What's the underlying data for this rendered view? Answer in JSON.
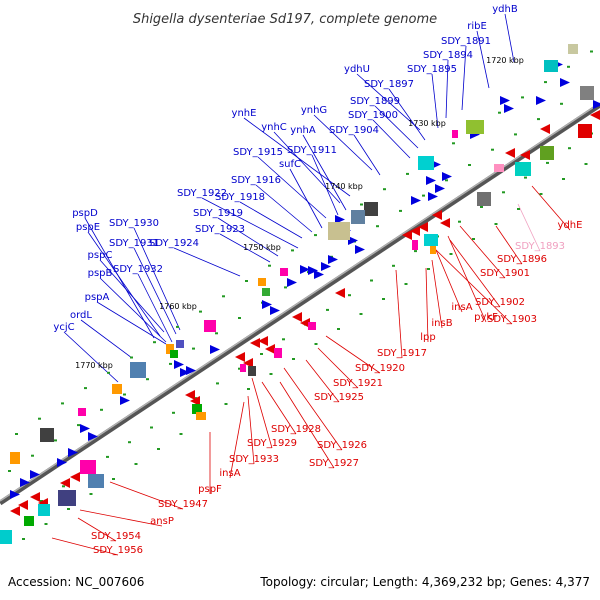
{
  "title": "Shigella dysenteriae Sd197, complete genome",
  "footer": {
    "accession": "Accession: NC_007606",
    "summary": "Topology: circular; Length: 4,369,232 bp; Genes: 4,377"
  },
  "colors": {
    "forward_label": "#0000cc",
    "reverse_label": "#dd0000",
    "pseudo_label": "#f0a0c0",
    "backbone": "#808080"
  },
  "kbp_marks": [
    "1720 kbp",
    "1730 kbp",
    "1740 kbp",
    "1750 kbp",
    "1760 kbp",
    "1770 kbp"
  ],
  "forward_genes": [
    "ydhB",
    "ribE",
    "SDY_1891",
    "SDY_1894",
    "SDY_1895",
    "ydhU",
    "SDY_1897",
    "SDY_1899",
    "SDY_1900",
    "ynhG",
    "SDY_1904",
    "ynhE",
    "ynhC",
    "ynhA",
    "SDY_1915",
    "SDY_1911",
    "sufC",
    "SDY_1916",
    "SDY_1918",
    "SDY_1922",
    "SDY_1919",
    "SDY_1923",
    "pspD",
    "pspE",
    "SDY_1930",
    "SDY_1931",
    "SDY_1924",
    "pspC",
    "pspB",
    "SDY_1932",
    "pspA",
    "ordL",
    "ycjC"
  ],
  "reverse_genes": [
    "ydhE",
    "SDY_1896",
    "SDY_1901",
    "SDY_1902",
    "SDY_1903",
    "pykF",
    "insA",
    "insB",
    "lpp",
    "SDY_1917",
    "SDY_1920",
    "SDY_1921",
    "SDY_1925",
    "SDY_1928",
    "SDY_1926",
    "SDY_1929",
    "SDY_1927",
    "SDY_1933",
    "insA",
    "pspF",
    "SDY_1947",
    "ansP",
    "SDY_1954",
    "SDY_1956"
  ],
  "pseudo_genes": [
    "SDY_1893"
  ]
}
